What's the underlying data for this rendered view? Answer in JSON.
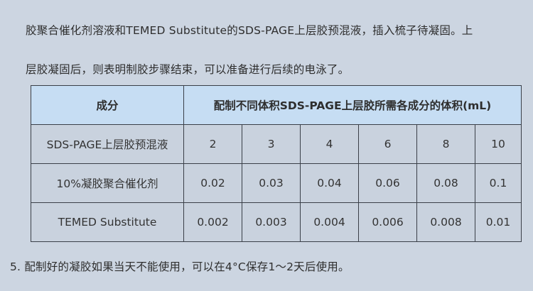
{
  "paragraph": {
    "line1": "胶聚合催化剂溶液和TEMED Substitute的SDS-PAGE上层胶预混液，插入梳子待凝固。上",
    "line2": "层胶凝固后，则表明制胶步骤结束，可以准备进行后续的电泳了。"
  },
  "table": {
    "header_component": "成分",
    "header_volume": "配制不同体积SDS-PAGE上层胶所需各成分的体积(mL)",
    "rows": [
      {
        "name": "SDS-PAGE上层胶预混液",
        "values": [
          "2",
          "3",
          "4",
          "6",
          "8",
          "10"
        ]
      },
      {
        "name": "10%凝胶聚合催化剂",
        "values": [
          "0.02",
          "0.03",
          "0.04",
          "0.06",
          "0.08",
          "0.1"
        ]
      },
      {
        "name": "TEMED Substitute",
        "values": [
          "0.002",
          "0.003",
          "0.004",
          "0.006",
          "0.008",
          "0.01"
        ]
      }
    ]
  },
  "note": "5. 配制好的凝胶如果当天不能使用，可以在4°C保存1～2天后使用。",
  "colors": {
    "background": "#ccd5e1",
    "header": "#c6ddf3",
    "cell": "#c9d2de"
  }
}
